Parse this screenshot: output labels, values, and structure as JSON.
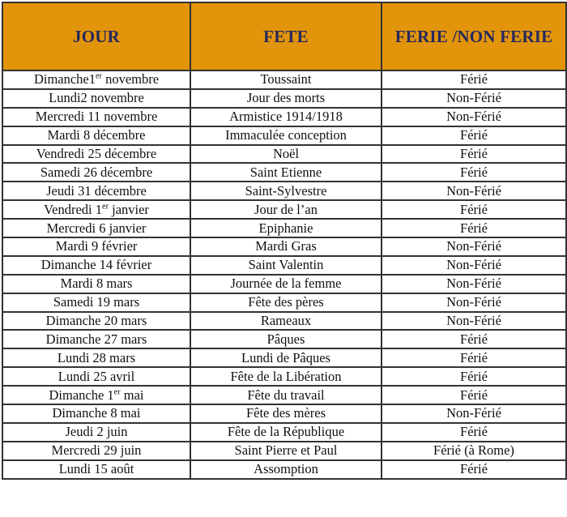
{
  "colors": {
    "header_bg": "#E2940A",
    "header_text": "#26295F",
    "body_text": "#111111",
    "border": "#333333"
  },
  "table": {
    "headers": [
      {
        "key": "jour",
        "label": "JOUR"
      },
      {
        "key": "fete",
        "label": "FETE"
      },
      {
        "key": "ferie",
        "label": "FERIE /NON FERIE"
      }
    ],
    "rows": [
      {
        "jour": [
          {
            "text": "Dimanche1"
          },
          {
            "text": "er",
            "sup": true
          },
          {
            "text": " novembre"
          }
        ],
        "fete": "Toussaint",
        "ferie": "Férié"
      },
      {
        "jour": [
          {
            "text": "Lundi2 novembre"
          }
        ],
        "fete": "Jour des morts",
        "ferie": "Non-Férié"
      },
      {
        "jour": [
          {
            "text": "Mercredi 11 novembre"
          }
        ],
        "fete": "Armistice 1914/1918",
        "ferie": "Non-Férié"
      },
      {
        "jour": [
          {
            "text": "Mardi 8 décembre"
          }
        ],
        "fete": "Immaculée conception",
        "ferie": "Férié"
      },
      {
        "jour": [
          {
            "text": "Vendredi 25 décembre"
          }
        ],
        "fete": "Noël",
        "ferie": "Férié"
      },
      {
        "jour": [
          {
            "text": "Samedi 26 décembre"
          }
        ],
        "fete": "Saint Etienne",
        "ferie": "Férié"
      },
      {
        "jour": [
          {
            "text": "Jeudi 31 décembre"
          }
        ],
        "fete": "Saint-Sylvestre",
        "ferie": "Non-Férié"
      },
      {
        "jour": [
          {
            "text": "Vendredi 1"
          },
          {
            "text": "er",
            "sup": true
          },
          {
            "text": " janvier"
          }
        ],
        "fete": "Jour de l’an",
        "ferie": "Férié"
      },
      {
        "jour": [
          {
            "text": "Mercredi 6 janvier"
          }
        ],
        "fete": "Epiphanie",
        "ferie": "Férié"
      },
      {
        "jour": [
          {
            "text": "Mardi 9 février"
          }
        ],
        "fete": "Mardi Gras",
        "ferie": "Non-Férié"
      },
      {
        "jour": [
          {
            "text": "Dimanche 14 février"
          }
        ],
        "fete": "Saint Valentin",
        "ferie": "Non-Férié"
      },
      {
        "jour": [
          {
            "text": "Mardi 8 mars"
          }
        ],
        "fete": "Journée de la femme",
        "ferie": "Non-Férié"
      },
      {
        "jour": [
          {
            "text": "Samedi 19 mars"
          }
        ],
        "fete": "Fête des pères",
        "ferie": "Non-Férié"
      },
      {
        "jour": [
          {
            "text": "Dimanche 20 mars"
          }
        ],
        "fete": "Rameaux",
        "ferie": "Non-Férié"
      },
      {
        "jour": [
          {
            "text": "Dimanche 27 mars"
          }
        ],
        "fete": "Pâques",
        "ferie": "Férié"
      },
      {
        "jour": [
          {
            "text": "Lundi 28 mars"
          }
        ],
        "fete": "Lundi de Pâques",
        "ferie": "Férié"
      },
      {
        "jour": [
          {
            "text": "Lundi 25 avril"
          }
        ],
        "fete": "Fête de la Libération",
        "ferie": "Férié"
      },
      {
        "jour": [
          {
            "text": "Dimanche 1"
          },
          {
            "text": "er",
            "sup": true
          },
          {
            "text": " mai"
          }
        ],
        "fete": "Fête du travail",
        "ferie": "Férié"
      },
      {
        "jour": [
          {
            "text": "Dimanche 8 mai"
          }
        ],
        "fete": "Fête des mères",
        "ferie": "Non-Férié"
      },
      {
        "jour": [
          {
            "text": "Jeudi 2 juin"
          }
        ],
        "fete": "Fête de la République",
        "ferie": "Férié"
      },
      {
        "jour": [
          {
            "text": "Mercredi 29 juin"
          }
        ],
        "fete": "Saint Pierre et Paul",
        "ferie": "Férié (à Rome)"
      },
      {
        "jour": [
          {
            "text": "Lundi 15 août"
          }
        ],
        "fete": "Assomption",
        "ferie": "Férié"
      }
    ]
  }
}
